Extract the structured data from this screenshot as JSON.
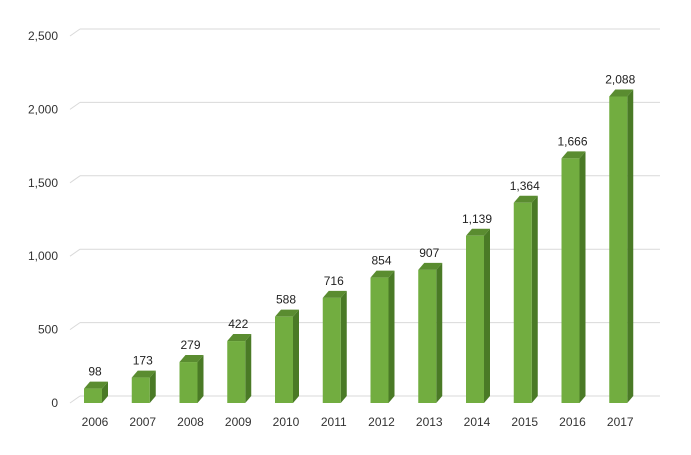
{
  "chart_data": {
    "type": "bar",
    "title": "",
    "xlabel": "",
    "ylabel": "",
    "categories": [
      "2006",
      "2007",
      "2008",
      "2009",
      "2010",
      "2011",
      "2012",
      "2013",
      "2014",
      "2015",
      "2016",
      "2017"
    ],
    "values": [
      98,
      173,
      279,
      422,
      588,
      716,
      854,
      907,
      1139,
      1364,
      1666,
      2088
    ],
    "value_labels": [
      "98",
      "173",
      "279",
      "422",
      "588",
      "716",
      "854",
      "907",
      "1,139",
      "1,364",
      "1,666",
      "2,088"
    ],
    "ylim": [
      0,
      2500
    ],
    "yticks": [
      0,
      500,
      1000,
      1500,
      2000,
      2500
    ],
    "ytick_labels": [
      "0",
      "500",
      "1,000",
      "1,500",
      "2,000",
      "2,500"
    ],
    "grid": true,
    "legend": "none",
    "style": "3d-bar",
    "colors": {
      "bar_front": "#72ad40",
      "bar_side": "#4a7a26",
      "bar_top": "#5a8c30",
      "grid": "#d9d9d9"
    }
  }
}
